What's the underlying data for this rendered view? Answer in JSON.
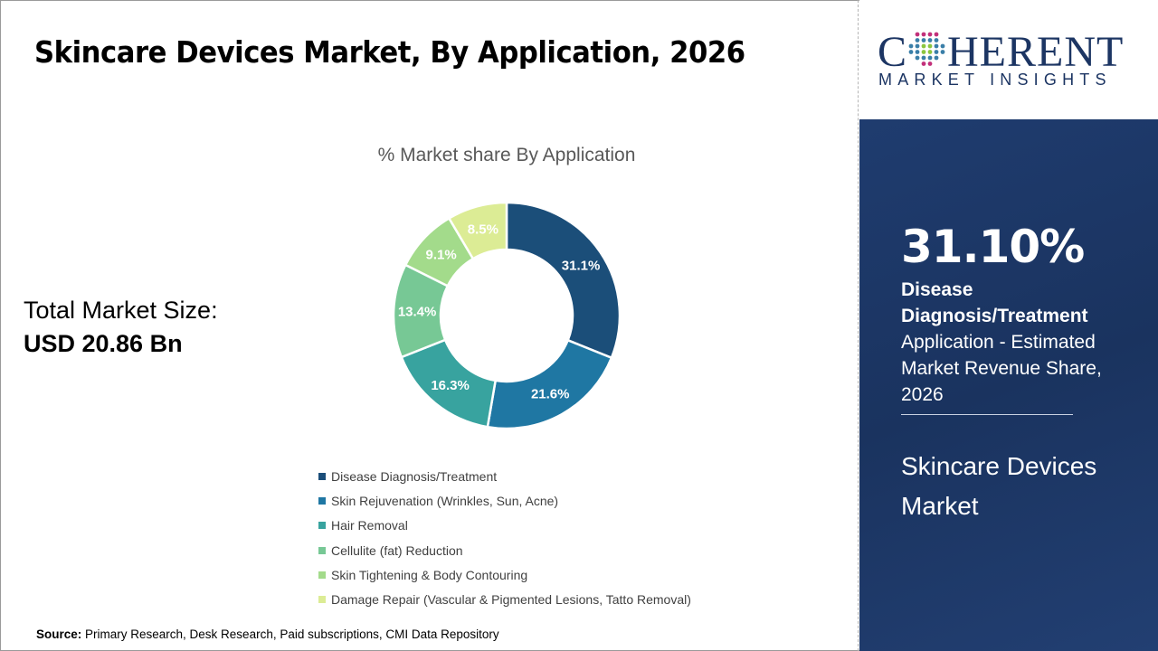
{
  "title": "Skincare Devices Market, By Application, 2026",
  "logo": {
    "main": "COHERENT",
    "sub": "MARKET INSIGHTS"
  },
  "total": {
    "label": "Total Market Size:",
    "value": "USD 20.86 Bn"
  },
  "panel": {
    "percent": "31.10%",
    "segment": "Disease Diagnosis/Treatment",
    "description": "Application - Estimated Market Revenue Share, 2026",
    "market": "Skincare Devices Market"
  },
  "source": {
    "label": "Source:",
    "text": " Primary Research, Desk Research, Paid subscriptions, CMI Data Repository"
  },
  "chart_data": {
    "type": "pie",
    "donut": true,
    "title": "% Market share By Application",
    "legend_position": "bottom",
    "categories": [
      "Disease Diagnosis/Treatment",
      "Skin Rejuvenation (Wrinkles, Sun, Acne)",
      "Hair Removal",
      "Cellulite (fat) Reduction",
      "Skin Tightening & Body Contouring",
      "Damage Repair (Vascular & Pigmented Lesions, Tatto Removal)"
    ],
    "values": [
      31.1,
      21.6,
      16.3,
      13.4,
      9.1,
      8.5
    ],
    "labels": [
      "31.1%",
      "21.6%",
      "16.3%",
      "13.4%",
      "9.1%",
      "8.5%"
    ],
    "colors": [
      "#1b4e79",
      "#1f77a3",
      "#38a39f",
      "#77c895",
      "#a3db8b",
      "#dcec95"
    ]
  }
}
